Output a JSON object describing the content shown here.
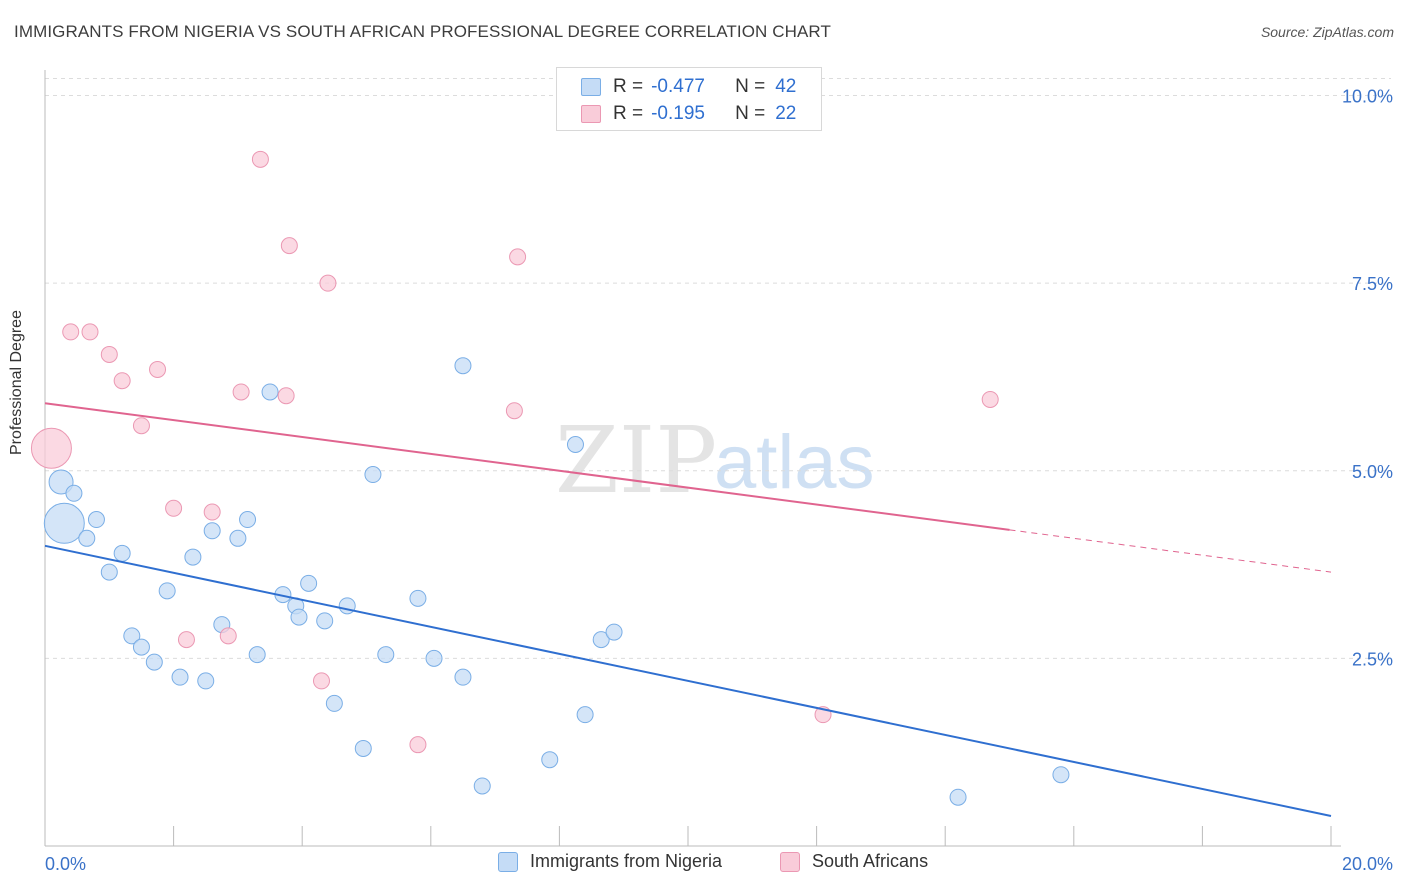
{
  "title": "IMMIGRANTS FROM NIGERIA VS SOUTH AFRICAN PROFESSIONAL DEGREE CORRELATION CHART",
  "source": "Source: ZipAtlas.com",
  "watermark": {
    "zip": "ZIP",
    "atlas": "atlas"
  },
  "colors": {
    "blue_fill": "#c5dcf6",
    "blue_stroke": "#7aaee6",
    "blue_line": "#2f6fd0",
    "pink_fill": "#f9ccd9",
    "pink_stroke": "#eb98b3",
    "pink_line": "#e0648f",
    "axis_text": "#3a72c8",
    "grid": "#dcdcdc"
  },
  "legend_top": [
    {
      "r_label": "R =",
      "r_value": "-0.477",
      "n_label": "N =",
      "n_value": "42"
    },
    {
      "r_label": "R =",
      "r_value": "-0.195",
      "n_label": "N =",
      "n_value": "22"
    }
  ],
  "legend_bottom": [
    "Immigrants from Nigeria",
    "South Africans"
  ],
  "chart_data": {
    "type": "scatter",
    "title": "IMMIGRANTS FROM NIGERIA VS SOUTH AFRICAN PROFESSIONAL DEGREE CORRELATION CHART",
    "xlabel": "",
    "ylabel": "Professional Degree",
    "xlim": [
      0,
      20
    ],
    "ylim": [
      0,
      10.5
    ],
    "x_tick_labels": [
      "0.0%",
      "20.0%"
    ],
    "y_ticks": [
      2.5,
      5.0,
      7.5,
      10.0
    ],
    "y_tick_labels": [
      "2.5%",
      "5.0%",
      "7.5%",
      "10.0%"
    ],
    "grid": true,
    "legend": "bottom",
    "series": [
      {
        "name": "Immigrants from Nigeria",
        "color": "#7aaee6",
        "points": [
          [
            0.3,
            4.3,
            3
          ],
          [
            0.25,
            4.85,
            2
          ],
          [
            0.45,
            4.7,
            1
          ],
          [
            0.8,
            4.35,
            1
          ],
          [
            0.65,
            4.1,
            1
          ],
          [
            1.2,
            3.9,
            1
          ],
          [
            1.0,
            3.65,
            1
          ],
          [
            1.35,
            2.8,
            1
          ],
          [
            1.5,
            2.65,
            1
          ],
          [
            1.7,
            2.45,
            1
          ],
          [
            1.9,
            3.4,
            1
          ],
          [
            2.1,
            2.25,
            1
          ],
          [
            2.3,
            3.85,
            1
          ],
          [
            2.5,
            2.2,
            1
          ],
          [
            2.6,
            4.2,
            1
          ],
          [
            2.75,
            2.95,
            1
          ],
          [
            3.0,
            4.1,
            1
          ],
          [
            3.15,
            4.35,
            1
          ],
          [
            3.3,
            2.55,
            1
          ],
          [
            3.5,
            6.05,
            1
          ],
          [
            3.7,
            3.35,
            1
          ],
          [
            3.9,
            3.2,
            1
          ],
          [
            3.95,
            3.05,
            1
          ],
          [
            4.1,
            3.5,
            1
          ],
          [
            4.35,
            3.0,
            1
          ],
          [
            4.5,
            1.9,
            1
          ],
          [
            4.7,
            3.2,
            1
          ],
          [
            4.95,
            1.3,
            1
          ],
          [
            5.1,
            4.95,
            1
          ],
          [
            5.3,
            2.55,
            1
          ],
          [
            5.8,
            3.3,
            1
          ],
          [
            6.05,
            2.5,
            1
          ],
          [
            6.5,
            6.4,
            1
          ],
          [
            6.5,
            2.25,
            1
          ],
          [
            6.8,
            0.8,
            1
          ],
          [
            7.85,
            1.15,
            1
          ],
          [
            8.25,
            5.35,
            1
          ],
          [
            8.4,
            1.75,
            1
          ],
          [
            8.65,
            2.75,
            1
          ],
          [
            8.85,
            2.85,
            1
          ],
          [
            14.2,
            0.65,
            1
          ],
          [
            15.8,
            0.95,
            1
          ]
        ]
      },
      {
        "name": "South Africans",
        "color": "#eb98b3",
        "points": [
          [
            0.1,
            5.3,
            3
          ],
          [
            0.4,
            6.85,
            1
          ],
          [
            0.7,
            6.85,
            1
          ],
          [
            1.0,
            6.55,
            1
          ],
          [
            1.2,
            6.2,
            1
          ],
          [
            1.5,
            5.6,
            1
          ],
          [
            1.75,
            6.35,
            1
          ],
          [
            2.0,
            4.5,
            1
          ],
          [
            2.2,
            2.75,
            1
          ],
          [
            2.6,
            4.45,
            1
          ],
          [
            2.85,
            2.8,
            1
          ],
          [
            3.05,
            6.05,
            1
          ],
          [
            3.35,
            9.15,
            1
          ],
          [
            3.75,
            6.0,
            1
          ],
          [
            3.8,
            8.0,
            1
          ],
          [
            4.3,
            2.2,
            1
          ],
          [
            4.4,
            7.5,
            1
          ],
          [
            5.8,
            1.35,
            1
          ],
          [
            7.3,
            5.8,
            1
          ],
          [
            7.35,
            7.85,
            1
          ],
          [
            12.1,
            1.75,
            1
          ],
          [
            14.7,
            5.95,
            1
          ]
        ]
      }
    ],
    "trendlines": [
      {
        "series": "Immigrants from Nigeria",
        "x": [
          0,
          20
        ],
        "y": [
          4.0,
          0.4
        ],
        "dashed_from": null
      },
      {
        "series": "South Africans",
        "x": [
          0,
          20
        ],
        "y": [
          5.9,
          3.65
        ],
        "dashed_from": 15
      }
    ]
  }
}
